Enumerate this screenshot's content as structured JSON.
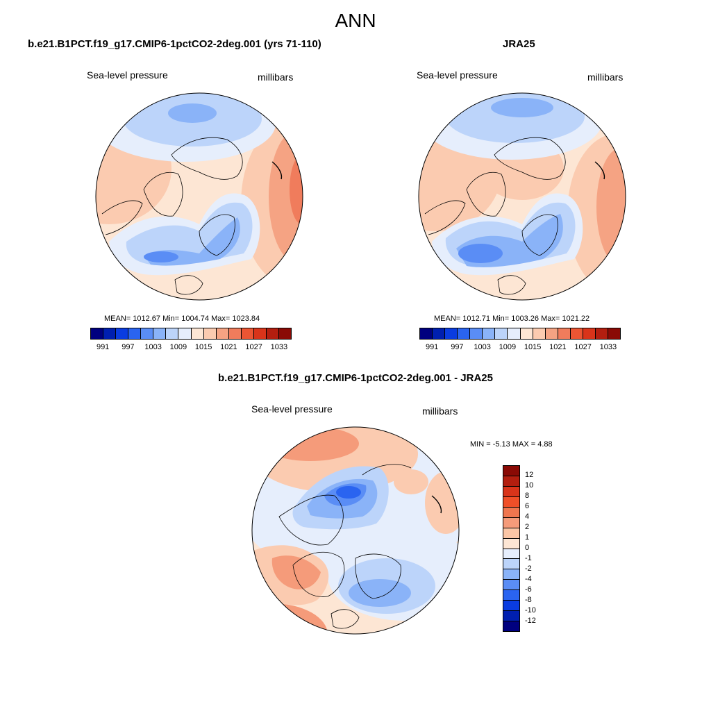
{
  "title": "ANN",
  "panels": {
    "model": {
      "title": "b.e21.B1PCT.f19_g17.CMIP6-1pctCO2-2deg.001 (yrs 71-110)",
      "left_label": "Sea-level pressure",
      "right_label": "millibars",
      "stats": "MEAN= 1012.67  Min= 1004.74  Max= 1023.84"
    },
    "obs": {
      "title": "JRA25",
      "left_label": "Sea-level pressure",
      "right_label": "millibars",
      "stats": "MEAN= 1012.71  Min= 1003.26  Max= 1021.22"
    },
    "diff": {
      "title": "b.e21.B1PCT.f19_g17.CMIP6-1pctCO2-2deg.001 - JRA25",
      "left_label": "Sea-level pressure",
      "right_label": "millibars",
      "stats": "MIN =  -5.13 MAX =   4.88"
    }
  },
  "colorbar_abs": {
    "colors": [
      "#00007f",
      "#001fb0",
      "#0a3ce0",
      "#2a64f0",
      "#5a8df5",
      "#8ab3f8",
      "#bcd4fa",
      "#e6eefc",
      "#fde6d4",
      "#fbcbb0",
      "#f5a383",
      "#f07c5c",
      "#ec5533",
      "#d9341a",
      "#b31e0f",
      "#8a0a05"
    ],
    "labels": [
      "991",
      "997",
      "1003",
      "1009",
      "1015",
      "1021",
      "1027",
      "1033"
    ]
  },
  "colorbar_diff": {
    "colors": [
      "#8a0a05",
      "#b31e0f",
      "#d9341a",
      "#f04f28",
      "#f0764f",
      "#f59b7a",
      "#fbc6a6",
      "#fde6d4",
      "#e6eefc",
      "#bcd4fa",
      "#8ab3f8",
      "#5a8df5",
      "#2a64f0",
      "#0a3ce0",
      "#001fb0",
      "#00007f"
    ],
    "labels": [
      "12",
      "10",
      "8",
      "6",
      "4",
      "2",
      "1",
      "0",
      "-1",
      "-2",
      "-4",
      "-6",
      "-8",
      "-10",
      "-12"
    ]
  }
}
